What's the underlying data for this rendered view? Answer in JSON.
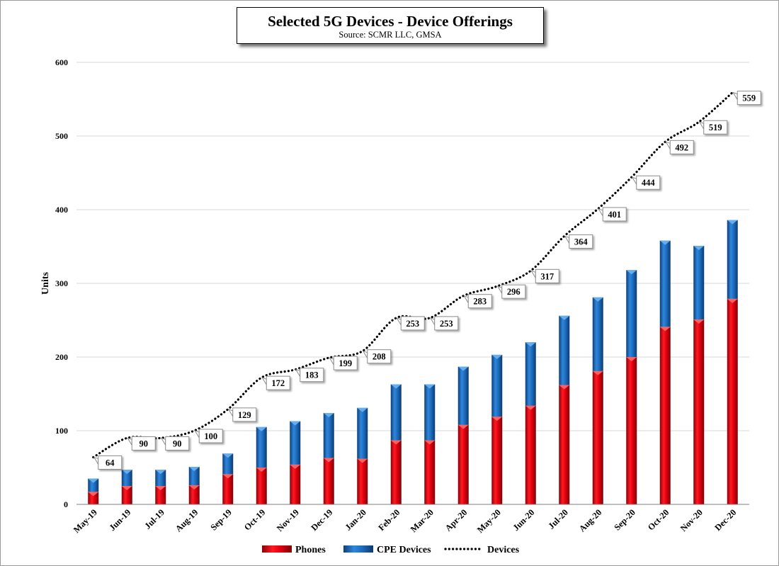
{
  "chart_data": {
    "type": "bar",
    "title": "Selected 5G Devices - Device Offerings",
    "subtitle": "Source: SCMR LLC, GMSA",
    "ylabel": "Units",
    "ylim": [
      0,
      600
    ],
    "yticks": [
      0,
      100,
      200,
      300,
      400,
      500,
      600
    ],
    "grid": true,
    "legend_position": "bottom",
    "categories": [
      "May-19",
      "Jun-19",
      "Jul-19",
      "Aug-19",
      "Sep-19",
      "Oct-19",
      "Nov-19",
      "Dec-19",
      "Jan-20",
      "Feb-20",
      "Mar-20",
      "Apr-20",
      "May-20",
      "Jun-20",
      "Jul-20",
      "Aug-20",
      "Sep-20",
      "Oct-20",
      "Nov-20",
      "Dec-20"
    ],
    "series": [
      {
        "name": "Phones",
        "type": "stacked-bar",
        "color": "#e3000f",
        "values": [
          17,
          25,
          25,
          26,
          41,
          50,
          54,
          63,
          62,
          87,
          87,
          108,
          119,
          134,
          162,
          181,
          200,
          241,
          251,
          279
        ]
      },
      {
        "name": "CPE Devices",
        "type": "stacked-bar",
        "color": "#1f6fc0",
        "values": [
          18,
          22,
          22,
          25,
          28,
          55,
          59,
          61,
          69,
          76,
          76,
          79,
          84,
          86,
          94,
          100,
          118,
          117,
          100,
          107
        ]
      },
      {
        "name": "Devices",
        "type": "line",
        "style": "dotted",
        "color": "#000000",
        "values": [
          64,
          90,
          90,
          100,
          129,
          172,
          183,
          199,
          208,
          253,
          253,
          283,
          296,
          317,
          364,
          401,
          444,
          492,
          519,
          559
        ]
      }
    ]
  }
}
